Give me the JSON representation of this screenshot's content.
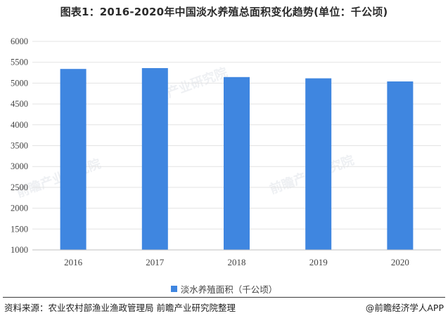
{
  "title": "图表1：2016-2020年中国淡水养殖总面积变化趋势(单位：千公顷)",
  "watermark": "前瞻产业研究院",
  "chart_data": {
    "type": "bar",
    "categories": [
      "2016",
      "2017",
      "2018",
      "2019",
      "2020"
    ],
    "values": [
      5340,
      5360,
      5145,
      5115,
      5040
    ],
    "ylim": [
      1000,
      6000
    ],
    "yticks": [
      1000,
      1500,
      2000,
      2500,
      3000,
      3500,
      4000,
      4500,
      5000,
      5500,
      6000
    ],
    "grid": true,
    "legend": {
      "position": "bottom",
      "label": "淡水养殖面积（千公顷）"
    },
    "series_color": "#3f86e0"
  },
  "footer": {
    "source": "资料来源：农业农村部渔业渔政管理局 前瞻产业研究院整理",
    "brand": "@前瞻经济学人APP"
  }
}
